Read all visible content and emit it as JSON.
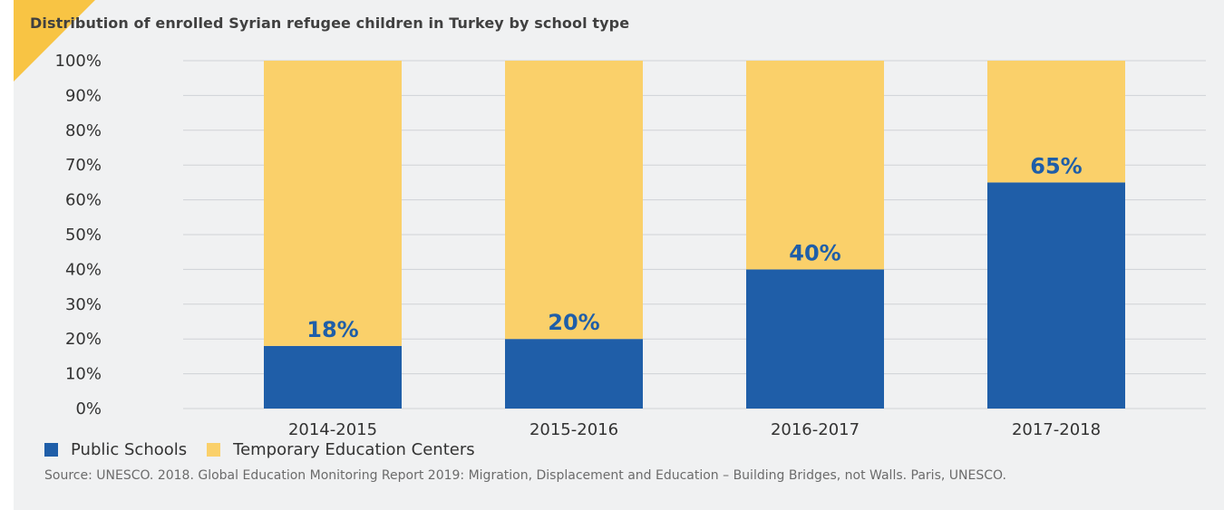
{
  "chart_data": {
    "type": "bar",
    "stacked": true,
    "title": "Distribution of enrolled Syrian refugee children in Turkey by school type",
    "categories": [
      "2014-2015",
      "2015-2016",
      "2016-2017",
      "2017-2018"
    ],
    "series": [
      {
        "name": "Public Schools",
        "values": [
          18,
          20,
          40,
          65
        ],
        "color": "#1f5ea8"
      },
      {
        "name": "Temporary Education Centers",
        "values": [
          82,
          80,
          60,
          35
        ],
        "color": "#fad06a"
      }
    ],
    "data_labels": [
      "18%",
      "20%",
      "40%",
      "65%"
    ],
    "yticks": [
      "0%",
      "10%",
      "20%",
      "30%",
      "40%",
      "50%",
      "60%",
      "70%",
      "80%",
      "90%",
      "100%"
    ],
    "ylim": [
      0,
      100
    ],
    "grid": true,
    "legend_position": "bottom-left"
  },
  "source": "Source: UNESCO. 2018. Global Education Monitoring Report 2019: Migration, Displacement and Education – Building Bridges, not Walls. Paris, UNESCO.",
  "colors": {
    "accent_corner": "#f8c444",
    "background": "#f0f1f2"
  }
}
